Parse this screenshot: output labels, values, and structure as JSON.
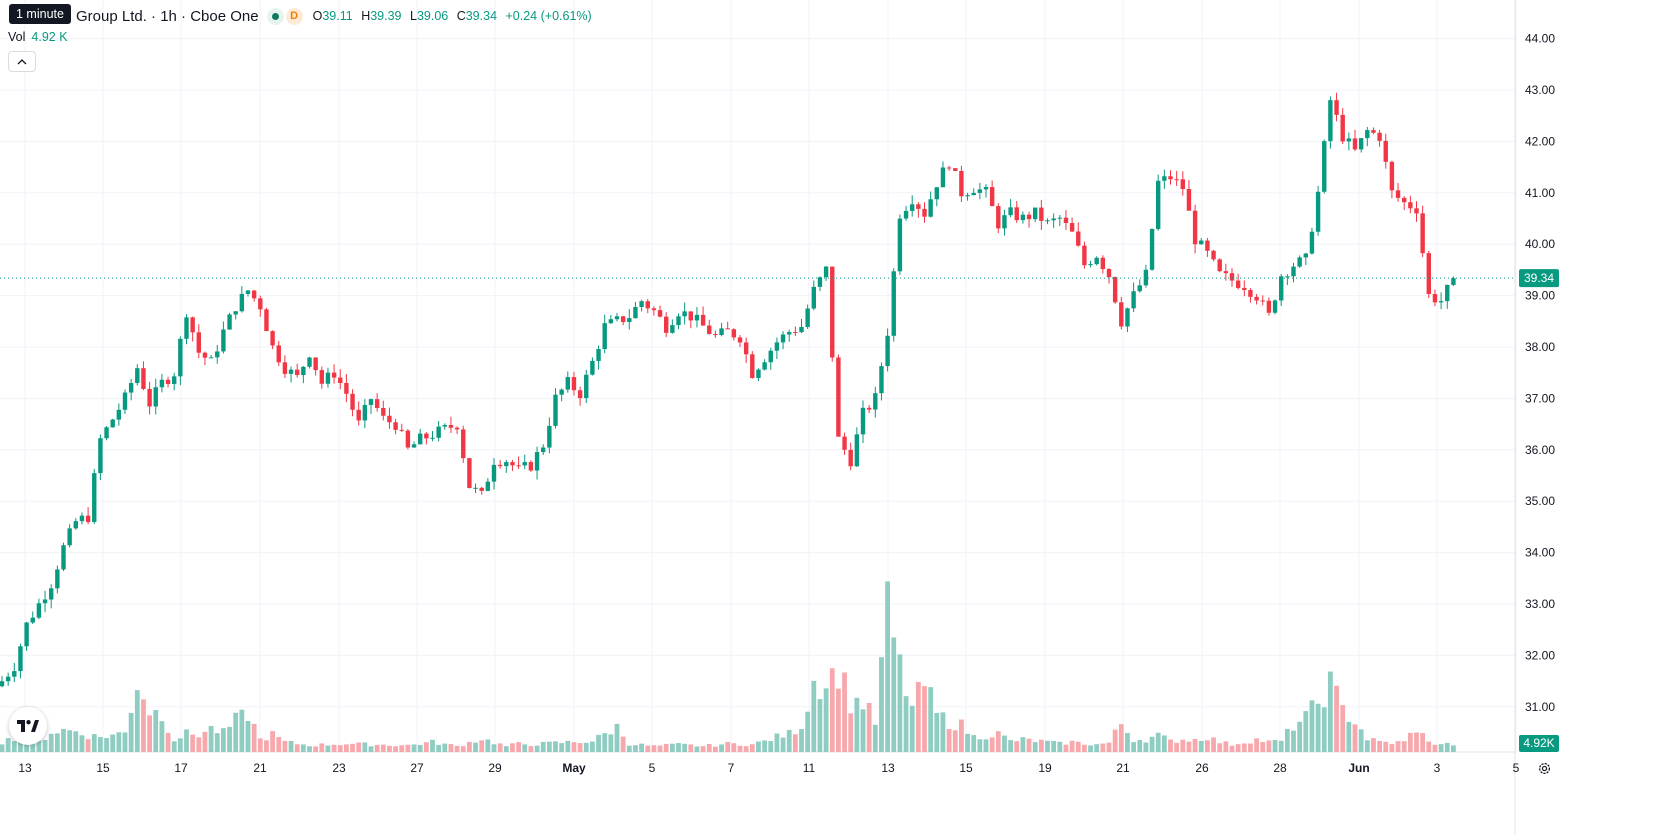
{
  "tooltip": "1 minute",
  "header": {
    "title": "Group Ltd. · 1h · Cboe One",
    "open_label": "O",
    "open": "39.11",
    "high_label": "H",
    "high": "39.39",
    "low_label": "L",
    "low": "39.06",
    "close_label": "C",
    "close": "39.34",
    "change": "+0.24 (+0.61%)",
    "badge_d": "D"
  },
  "volume": {
    "label": "Vol",
    "value": "4.92 K"
  },
  "price_axis": {
    "labels": [
      "44.00",
      "43.00",
      "42.00",
      "41.00",
      "40.00",
      "39.00",
      "38.00",
      "37.00",
      "36.00",
      "35.00",
      "34.00",
      "33.00",
      "32.00",
      "31.00"
    ],
    "last_price": "39.34",
    "last_volume": "4.92K"
  },
  "time_axis": {
    "labels": [
      "13",
      "15",
      "17",
      "21",
      "23",
      "27",
      "29",
      "May",
      "5",
      "7",
      "11",
      "13",
      "15",
      "19",
      "21",
      "26",
      "28",
      "Jun",
      "3",
      "5"
    ],
    "bold": [
      "May",
      "Jun"
    ]
  },
  "colors": {
    "up": "#089981",
    "down": "#f23645",
    "up_vol": "#8fcdc2",
    "down_vol": "#f7a8ad",
    "grid": "#f0f3fa",
    "axis_text": "#131722"
  },
  "icons": {
    "collapse": "chevron-up-icon",
    "logo": "tradingview-logo-icon",
    "settings": "gear-icon"
  },
  "chart_data": {
    "type": "candlestick",
    "y_unit": "price",
    "ylim": [
      30.5,
      44.5
    ],
    "grid": true,
    "anchors": [
      [
        0,
        31.5
      ],
      [
        2,
        31.8
      ],
      [
        4,
        32.6
      ],
      [
        6,
        33.0
      ],
      [
        8,
        33.4
      ],
      [
        10,
        34.1
      ],
      [
        12,
        34.6
      ],
      [
        14,
        34.7
      ],
      [
        16,
        36.2
      ],
      [
        20,
        37.0
      ],
      [
        22,
        37.6
      ],
      [
        24,
        36.9
      ],
      [
        26,
        37.3
      ],
      [
        28,
        37.5
      ],
      [
        30,
        38.7
      ],
      [
        32,
        37.9
      ],
      [
        34,
        37.7
      ],
      [
        36,
        38.3
      ],
      [
        38,
        38.8
      ],
      [
        40,
        39.1
      ],
      [
        42,
        38.8
      ],
      [
        44,
        38.0
      ],
      [
        46,
        37.6
      ],
      [
        48,
        37.4
      ],
      [
        50,
        37.9
      ],
      [
        52,
        37.3
      ],
      [
        54,
        37.5
      ],
      [
        56,
        37.1
      ],
      [
        58,
        36.5
      ],
      [
        60,
        37.0
      ],
      [
        62,
        36.6
      ],
      [
        64,
        36.5
      ],
      [
        66,
        36.0
      ],
      [
        68,
        36.2
      ],
      [
        70,
        36.3
      ],
      [
        72,
        36.4
      ],
      [
        74,
        36.5
      ],
      [
        76,
        35.3
      ],
      [
        78,
        35.1
      ],
      [
        80,
        35.8
      ],
      [
        82,
        35.8
      ],
      [
        84,
        35.6
      ],
      [
        86,
        35.7
      ],
      [
        88,
        36.1
      ],
      [
        90,
        37.0
      ],
      [
        92,
        37.3
      ],
      [
        94,
        37.1
      ],
      [
        96,
        37.7
      ],
      [
        98,
        38.4
      ],
      [
        100,
        38.5
      ],
      [
        102,
        38.6
      ],
      [
        104,
        38.9
      ],
      [
        106,
        38.7
      ],
      [
        108,
        38.4
      ],
      [
        110,
        38.7
      ],
      [
        112,
        38.6
      ],
      [
        114,
        38.4
      ],
      [
        116,
        38.2
      ],
      [
        118,
        38.3
      ],
      [
        120,
        38.2
      ],
      [
        122,
        37.5
      ],
      [
        124,
        37.8
      ],
      [
        126,
        38.1
      ],
      [
        128,
        38.3
      ],
      [
        130,
        38.4
      ],
      [
        132,
        39.1
      ],
      [
        134,
        39.5
      ],
      [
        136,
        36.2
      ],
      [
        138,
        35.8
      ],
      [
        140,
        36.7
      ],
      [
        142,
        37.0
      ],
      [
        144,
        38.3
      ],
      [
        146,
        40.6
      ],
      [
        148,
        40.9
      ],
      [
        150,
        40.6
      ],
      [
        152,
        41.2
      ],
      [
        154,
        41.6
      ],
      [
        156,
        41.0
      ],
      [
        158,
        41.1
      ],
      [
        160,
        41.0
      ],
      [
        162,
        40.4
      ],
      [
        164,
        40.6
      ],
      [
        166,
        40.5
      ],
      [
        168,
        40.6
      ],
      [
        170,
        40.4
      ],
      [
        172,
        40.5
      ],
      [
        174,
        40.2
      ],
      [
        176,
        39.6
      ],
      [
        178,
        39.8
      ],
      [
        180,
        39.4
      ],
      [
        182,
        38.5
      ],
      [
        184,
        39.0
      ],
      [
        186,
        39.4
      ],
      [
        188,
        41.2
      ],
      [
        190,
        41.3
      ],
      [
        192,
        41.1
      ],
      [
        194,
        40.1
      ],
      [
        196,
        39.8
      ],
      [
        198,
        39.4
      ],
      [
        200,
        39.3
      ],
      [
        202,
        39.2
      ],
      [
        204,
        39.0
      ],
      [
        206,
        38.6
      ],
      [
        208,
        39.4
      ],
      [
        210,
        39.6
      ],
      [
        212,
        39.7
      ],
      [
        214,
        41.0
      ],
      [
        216,
        42.8
      ],
      [
        218,
        42.1
      ],
      [
        220,
        41.8
      ],
      [
        222,
        42.2
      ],
      [
        224,
        42.1
      ],
      [
        226,
        41.0
      ],
      [
        228,
        40.8
      ],
      [
        230,
        40.7
      ],
      [
        232,
        39.0
      ],
      [
        234,
        38.9
      ],
      [
        236,
        39.3
      ]
    ],
    "last_close": 39.34,
    "volume": {
      "ylim": [
        0,
        30000
      ],
      "peaks": [
        [
          0,
          1200
        ],
        [
          2,
          1700
        ],
        [
          6,
          1200
        ],
        [
          8,
          2400
        ],
        [
          10,
          2600
        ],
        [
          12,
          2500
        ],
        [
          14,
          2000
        ],
        [
          16,
          1800
        ],
        [
          20,
          2300
        ],
        [
          22,
          8500
        ],
        [
          24,
          5000
        ],
        [
          26,
          4500
        ],
        [
          28,
          1500
        ],
        [
          30,
          2200
        ],
        [
          32,
          2100
        ],
        [
          34,
          2800
        ],
        [
          36,
          2300
        ],
        [
          38,
          3800
        ],
        [
          40,
          4600
        ],
        [
          42,
          1500
        ],
        [
          44,
          2100
        ],
        [
          46,
          1200
        ],
        [
          50,
          800
        ],
        [
          56,
          1000
        ],
        [
          60,
          900
        ],
        [
          66,
          800
        ],
        [
          70,
          1200
        ],
        [
          74,
          700
        ],
        [
          78,
          1600
        ],
        [
          82,
          700
        ],
        [
          84,
          1000
        ],
        [
          86,
          900
        ],
        [
          90,
          1100
        ],
        [
          96,
          1300
        ],
        [
          100,
          3000
        ],
        [
          102,
          1000
        ],
        [
          106,
          700
        ],
        [
          110,
          900
        ],
        [
          114,
          700
        ],
        [
          118,
          1000
        ],
        [
          122,
          900
        ],
        [
          124,
          1300
        ],
        [
          126,
          1800
        ],
        [
          128,
          2200
        ],
        [
          130,
          3200
        ],
        [
          132,
          8500
        ],
        [
          134,
          8300
        ],
        [
          136,
          10000
        ],
        [
          138,
          6000
        ],
        [
          140,
          6000
        ],
        [
          142,
          3500
        ],
        [
          144,
          17000
        ],
        [
          146,
          10000
        ],
        [
          148,
          5300
        ],
        [
          150,
          8200
        ],
        [
          152,
          4500
        ],
        [
          154,
          3600
        ],
        [
          156,
          3200
        ],
        [
          158,
          1800
        ],
        [
          160,
          2000
        ],
        [
          162,
          2200
        ],
        [
          164,
          1300
        ],
        [
          166,
          1500
        ],
        [
          170,
          1200
        ],
        [
          172,
          1000
        ],
        [
          174,
          1200
        ],
        [
          176,
          1000
        ],
        [
          178,
          900
        ],
        [
          180,
          1100
        ],
        [
          182,
          3400
        ],
        [
          184,
          1500
        ],
        [
          186,
          1500
        ],
        [
          188,
          2000
        ],
        [
          190,
          1300
        ],
        [
          192,
          1500
        ],
        [
          194,
          1500
        ],
        [
          196,
          1800
        ],
        [
          198,
          1200
        ],
        [
          200,
          900
        ],
        [
          202,
          1200
        ],
        [
          204,
          1500
        ],
        [
          206,
          1200
        ],
        [
          208,
          1300
        ],
        [
          210,
          3200
        ],
        [
          212,
          4100
        ],
        [
          214,
          5900
        ],
        [
          216,
          8200
        ],
        [
          218,
          5000
        ],
        [
          220,
          3800
        ],
        [
          222,
          1600
        ],
        [
          224,
          1200
        ],
        [
          226,
          1100
        ],
        [
          228,
          1200
        ],
        [
          230,
          2900
        ],
        [
          232,
          1100
        ],
        [
          234,
          1000
        ],
        [
          236,
          900
        ]
      ]
    }
  }
}
